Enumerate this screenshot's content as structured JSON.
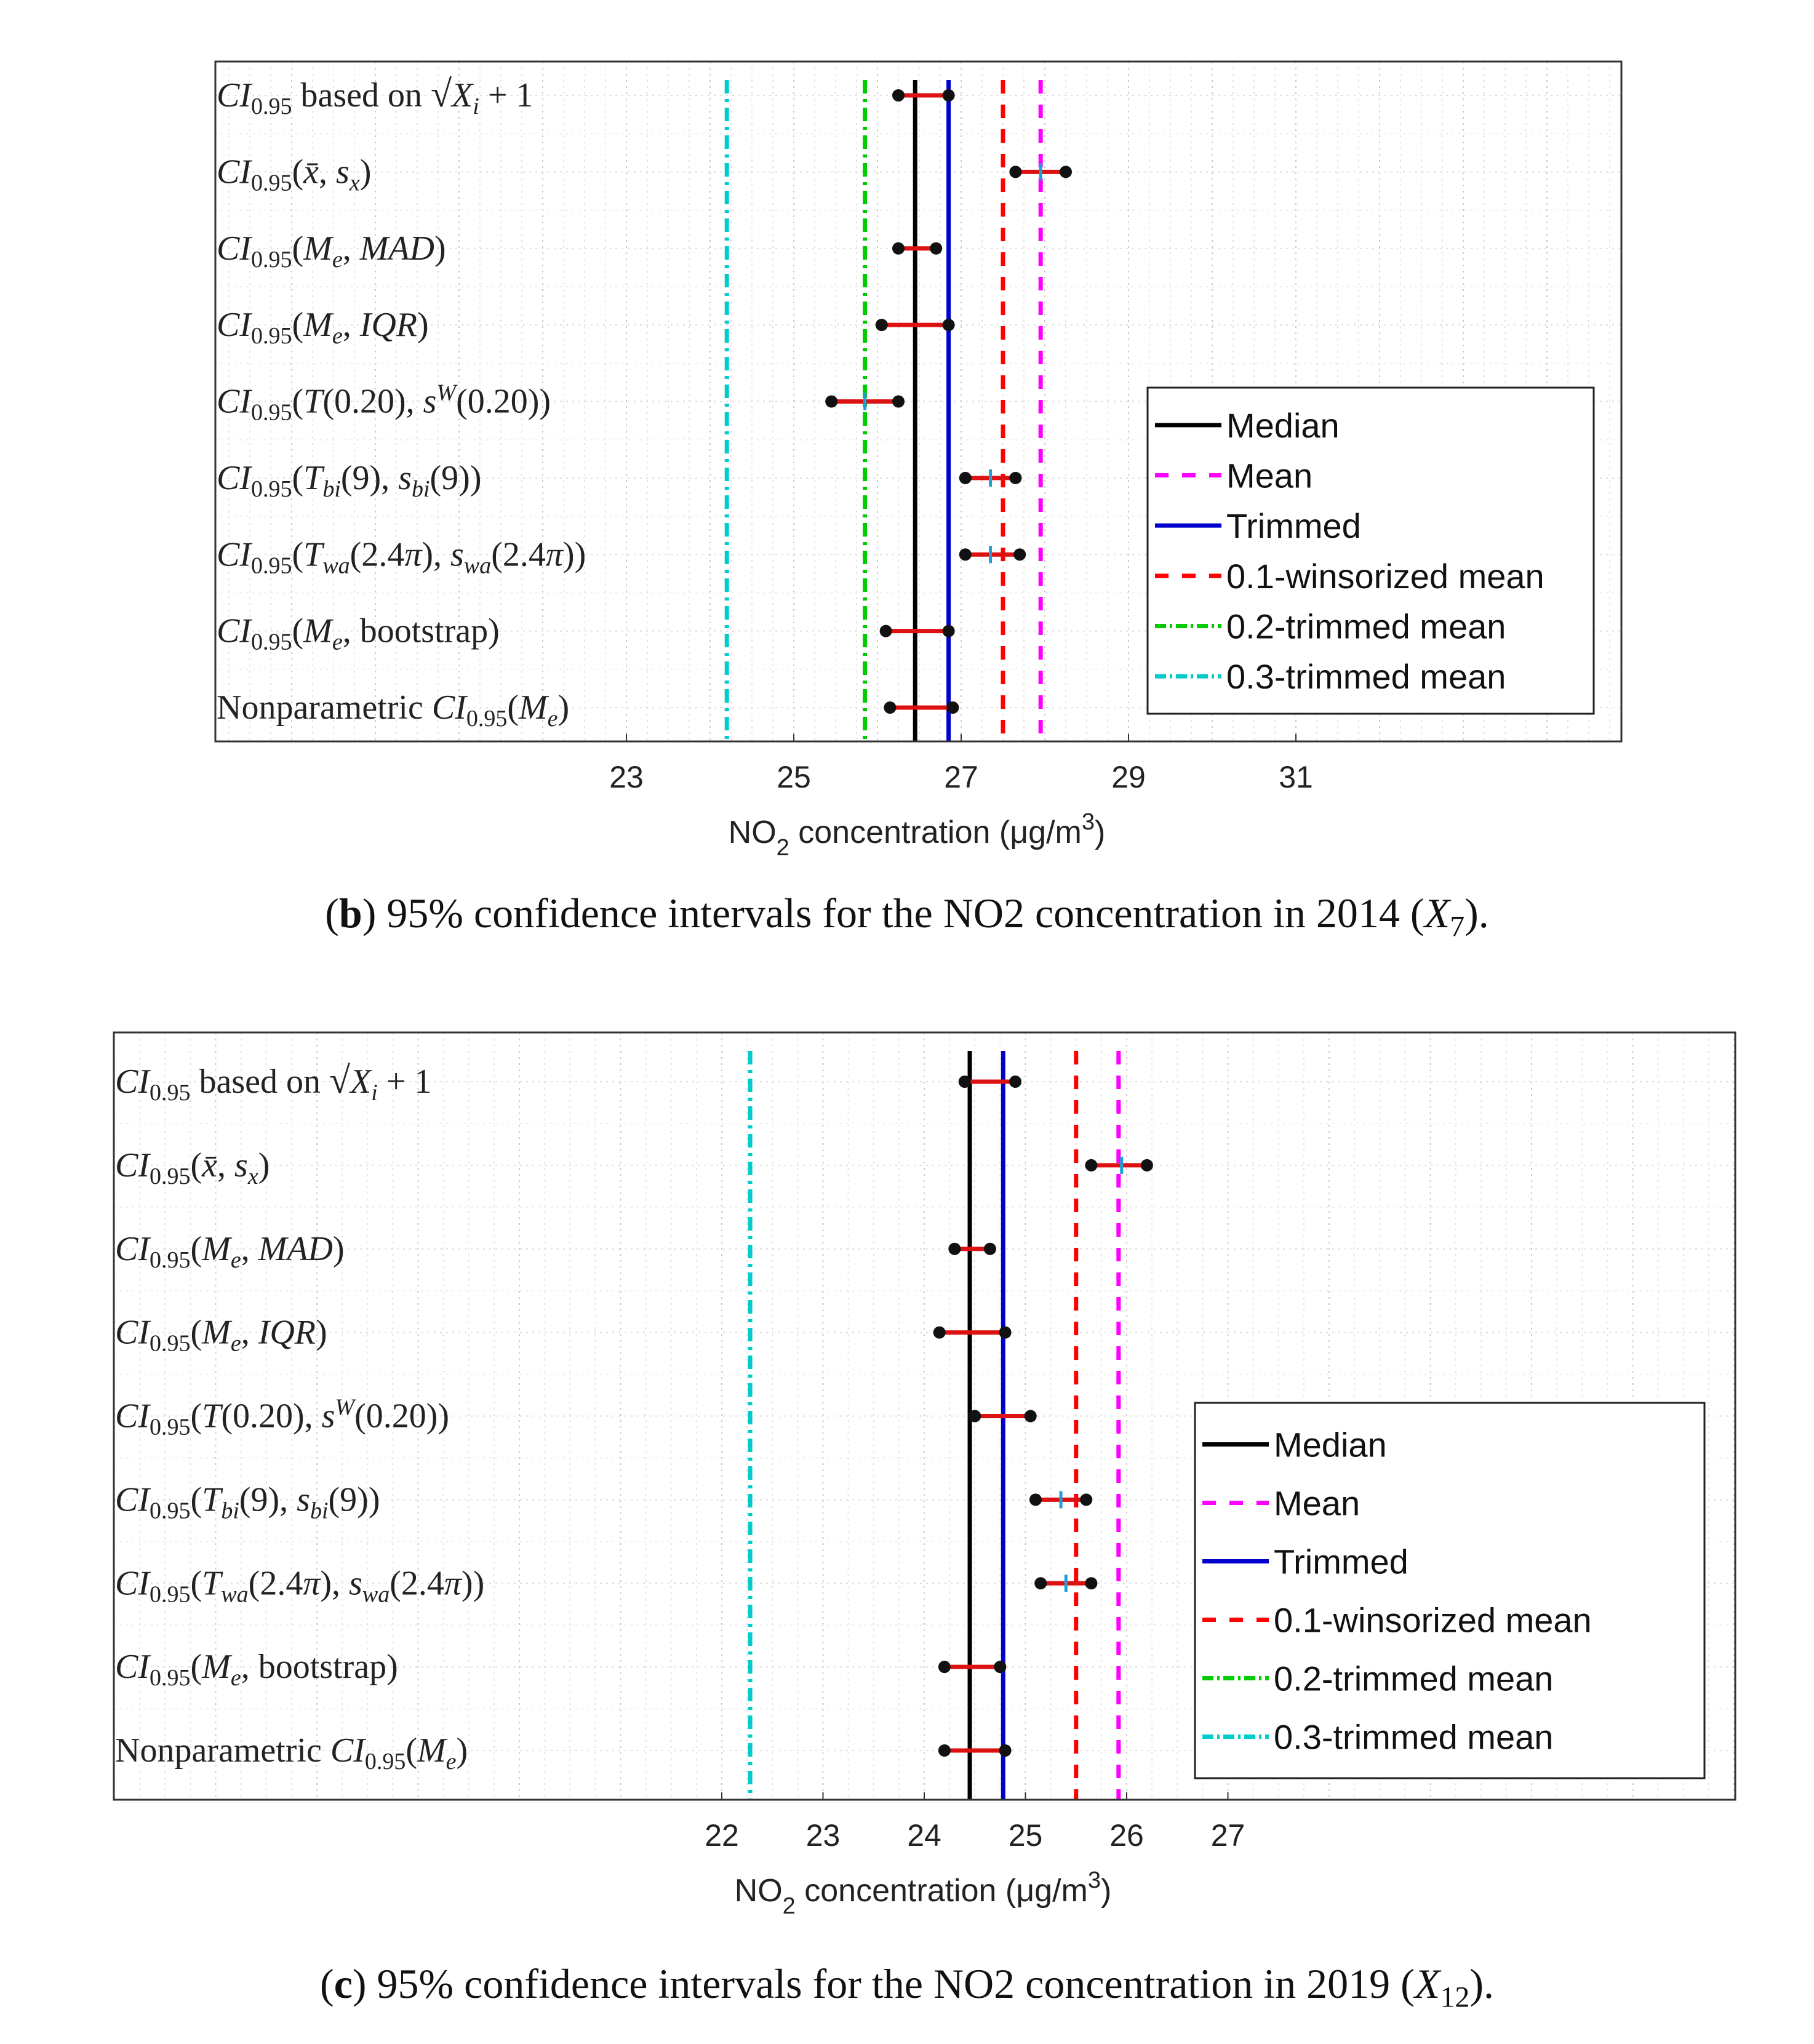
{
  "chart_data": [
    {
      "type": "interval",
      "caption": {
        "label": "b",
        "text": "95% confidence intervals for the NO2 concentration in 2014",
        "var": "X",
        "sub": "7"
      },
      "xlabel": "NO2 concentration (μg/m3)",
      "xlabel_parts": {
        "pre": "NO",
        "sub": "2",
        "mid": " concentration (μg/m",
        "sup": "3",
        "post": ")"
      },
      "xlim": [
        18,
        35
      ],
      "xticks": [
        23,
        25,
        27,
        29,
        31
      ],
      "grid": true,
      "legend_position": "right",
      "categories": [
        "CI0.95 based on √(Xi + 1)",
        "CI0.95(x̄, sx)",
        "CI0.95(Me, MAD)",
        "CI0.95(Me, IQR)",
        "CI0.95(T(0.20), sW(0.20))",
        "CI0.95(Tbi(9), sbi(9))",
        "CI0.95(Twa(2.4π), swa(2.4π))",
        "CI0.95(Me, bootstrap)",
        "Nonparametric CI0.95(Me)"
      ],
      "intervals": [
        {
          "low": 26.25,
          "high": 26.85,
          "center": null
        },
        {
          "low": 27.65,
          "high": 28.25,
          "center": 27.95
        },
        {
          "low": 26.25,
          "high": 26.7,
          "center": null
        },
        {
          "low": 26.05,
          "high": 26.85,
          "center": null
        },
        {
          "low": 25.45,
          "high": 26.25,
          "center": 25.85
        },
        {
          "low": 27.05,
          "high": 27.65,
          "center": 27.35
        },
        {
          "low": 27.05,
          "high": 27.7,
          "center": 27.35
        },
        {
          "low": 26.1,
          "high": 26.85,
          "center": null
        },
        {
          "low": 26.15,
          "high": 26.9,
          "center": null
        }
      ],
      "reference_lines": [
        {
          "name": "Median",
          "value": 26.45,
          "color": "#000000",
          "style": "solid"
        },
        {
          "name": "Mean",
          "value": 27.95,
          "color": "#ff00ff",
          "style": "dashed"
        },
        {
          "name": "Trimmed",
          "value": 26.85,
          "color": "#0000cc",
          "style": "solid"
        },
        {
          "name": "0.1-winsorized mean",
          "value": 27.5,
          "color": "#ff0000",
          "style": "dashed"
        },
        {
          "name": "0.2-trimmed  mean",
          "value": 25.85,
          "color": "#00cc00",
          "style": "dashdot"
        },
        {
          "name": "0.3-trimmed  mean",
          "value": 24.2,
          "color": "#00cccc",
          "style": "dashdot"
        }
      ]
    },
    {
      "type": "interval",
      "caption": {
        "label": "c",
        "text": "95% confidence intervals for the NO2 concentration in 2019",
        "var": "X",
        "sub": "12"
      },
      "xlabel": "NO2 concentration (μg/m3)",
      "xlabel_parts": {
        "pre": "NO",
        "sub": "2",
        "mid": " concentration (μg/m",
        "sup": "3",
        "post": ")"
      },
      "xlim": [
        16,
        32
      ],
      "xticks": [
        22,
        23,
        24,
        25,
        26,
        27
      ],
      "grid": true,
      "legend_position": "right",
      "categories": [
        "CI0.95 based on √(Xi + 1)",
        "CI0.95(x̄, sx)",
        "CI0.95(Me, MAD)",
        "CI0.95(Me, IQR)",
        "CI0.95(T(0.20), sW(0.20))",
        "CI0.95(Tbi(9), sbi(9))",
        "CI0.95(Twa(2.4π), swa(2.4π))",
        "CI0.95(Me, bootstrap)",
        "Nonparametric CI0.95(Me)"
      ],
      "intervals": [
        {
          "low": 24.4,
          "high": 24.9,
          "center": null
        },
        {
          "low": 25.65,
          "high": 26.2,
          "center": 25.95
        },
        {
          "low": 24.3,
          "high": 24.65,
          "center": null
        },
        {
          "low": 24.15,
          "high": 24.8,
          "center": null
        },
        {
          "low": 24.5,
          "high": 25.05,
          "center": null
        },
        {
          "low": 25.1,
          "high": 25.6,
          "center": 25.35
        },
        {
          "low": 25.15,
          "high": 25.65,
          "center": 25.4
        },
        {
          "low": 24.2,
          "high": 24.75,
          "center": null
        },
        {
          "low": 24.2,
          "high": 24.8,
          "center": null
        }
      ],
      "reference_lines": [
        {
          "name": "Median",
          "value": 24.45,
          "color": "#000000",
          "style": "solid"
        },
        {
          "name": "Mean",
          "value": 25.92,
          "color": "#ff00ff",
          "style": "dashed"
        },
        {
          "name": "Trimmed",
          "value": 24.78,
          "color": "#0000cc",
          "style": "solid"
        },
        {
          "name": "0.1-winsorized mean",
          "value": 25.5,
          "color": "#ff0000",
          "style": "dashed"
        },
        {
          "name": "0.2-trimmed  mean",
          "value": 22.28,
          "color": "#00cc00",
          "style": "dashdot"
        },
        {
          "name": "0.3-trimmed  mean",
          "value": 22.28,
          "color": "#00cccc",
          "style": "dashdot"
        }
      ]
    }
  ],
  "colors": {
    "interval": "#dd1111",
    "endpoint": "#111111",
    "center_mark": "#1f9fd6",
    "axes": "#333333",
    "grid": "#cfcfcf"
  }
}
